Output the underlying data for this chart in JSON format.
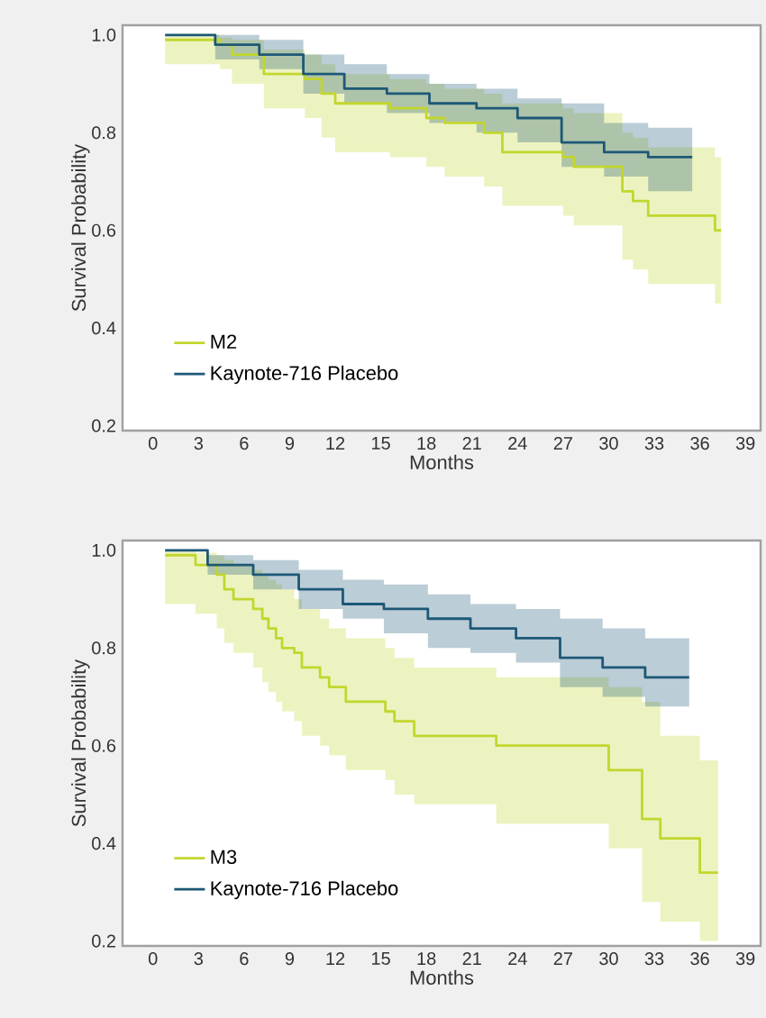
{
  "chart_data": [
    {
      "type": "step",
      "xlabel": "Months",
      "ylabel": "Survival Probability",
      "xlim": [
        -2,
        40
      ],
      "ylim": [
        0.19,
        1.02
      ],
      "xticks": [
        0,
        3,
        6,
        9,
        12,
        15,
        18,
        21,
        24,
        27,
        30,
        33,
        36,
        39
      ],
      "yticks": [
        0.2,
        0.4,
        0.6,
        0.8,
        {
          "value": 1,
          "label": "1.0"
        }
      ],
      "legend": "bottom left",
      "grid": false,
      "series": [
        {
          "name": "M2",
          "color": "#c2d62e",
          "x": [
            0.8,
            4.4,
            5.2,
            7.3,
            10.0,
            11.1,
            12.0,
            15.6,
            18.0,
            19.2,
            21.8,
            23.0,
            27.0,
            27.7,
            30.9,
            31.6,
            32.6,
            37.0,
            37.4
          ],
          "values": [
            0.99,
            0.98,
            0.96,
            0.92,
            0.91,
            0.88,
            0.86,
            0.85,
            0.83,
            0.82,
            0.8,
            0.76,
            0.75,
            0.73,
            0.68,
            0.66,
            0.63,
            0.6,
            0.6
          ],
          "upper": [
            1.0,
            0.995,
            0.99,
            0.97,
            0.96,
            0.94,
            0.92,
            0.91,
            0.9,
            0.89,
            0.88,
            0.86,
            0.85,
            0.84,
            0.8,
            0.79,
            0.77,
            0.75,
            0.75
          ],
          "lower": [
            0.94,
            0.93,
            0.9,
            0.85,
            0.83,
            0.79,
            0.76,
            0.75,
            0.73,
            0.71,
            0.69,
            0.65,
            0.63,
            0.61,
            0.54,
            0.52,
            0.49,
            0.45,
            0.45
          ]
        },
        {
          "name": "Kaynote-716 Placebo",
          "color": "#1d5877",
          "x": [
            0.8,
            4.1,
            7.0,
            9.9,
            12.6,
            15.4,
            18.2,
            21.3,
            24.0,
            26.9,
            29.7,
            32.6,
            35.5
          ],
          "values": [
            1.0,
            0.98,
            0.96,
            0.92,
            0.89,
            0.88,
            0.86,
            0.85,
            0.83,
            0.78,
            0.76,
            0.75,
            0.75
          ],
          "upper": [
            1.0,
            1.0,
            0.99,
            0.96,
            0.94,
            0.92,
            0.9,
            0.89,
            0.87,
            0.86,
            0.82,
            0.81,
            0.81
          ],
          "lower": [
            1.0,
            0.95,
            0.93,
            0.88,
            0.86,
            0.84,
            0.82,
            0.8,
            0.78,
            0.73,
            0.71,
            0.68,
            0.68
          ]
        }
      ]
    },
    {
      "type": "step",
      "xlabel": "Months",
      "ylabel": "Survival Probability",
      "xlim": [
        -2,
        40
      ],
      "ylim": [
        0.19,
        1.02
      ],
      "xticks": [
        0,
        3,
        6,
        9,
        12,
        15,
        18,
        21,
        24,
        27,
        30,
        33,
        36,
        39
      ],
      "yticks": [
        0.2,
        0.4,
        0.6,
        0.8,
        {
          "value": 1,
          "label": "1.0"
        }
      ],
      "legend": "bottom left",
      "grid": false,
      "series": [
        {
          "name": "M3",
          "color": "#c2d62e",
          "x": [
            0.8,
            2.8,
            4.2,
            4.7,
            5.3,
            6.6,
            7.2,
            7.6,
            8.1,
            8.5,
            9.3,
            9.8,
            11.0,
            11.6,
            12.7,
            15.3,
            15.9,
            17.2,
            22.6,
            30.0,
            32.2,
            33.4,
            36.0,
            37.2
          ],
          "values": [
            0.99,
            0.97,
            0.95,
            0.92,
            0.9,
            0.88,
            0.86,
            0.84,
            0.82,
            0.8,
            0.79,
            0.76,
            0.74,
            0.72,
            0.69,
            0.67,
            0.65,
            0.62,
            0.6,
            0.55,
            0.45,
            0.41,
            0.34,
            0.34
          ],
          "upper": [
            1.0,
            0.995,
            0.99,
            0.98,
            0.97,
            0.96,
            0.95,
            0.94,
            0.93,
            0.92,
            0.9,
            0.88,
            0.86,
            0.84,
            0.82,
            0.8,
            0.78,
            0.76,
            0.74,
            0.72,
            0.69,
            0.62,
            0.57,
            0.57
          ],
          "lower": [
            0.89,
            0.87,
            0.84,
            0.81,
            0.79,
            0.76,
            0.73,
            0.71,
            0.69,
            0.67,
            0.65,
            0.62,
            0.6,
            0.58,
            0.55,
            0.53,
            0.5,
            0.48,
            0.44,
            0.39,
            0.28,
            0.24,
            0.2,
            0.2
          ]
        },
        {
          "name": "Kaynote-716 Placebo",
          "color": "#1d5877",
          "x": [
            0.8,
            3.6,
            6.6,
            9.6,
            12.5,
            15.2,
            18.1,
            20.9,
            23.9,
            26.8,
            29.6,
            32.4,
            35.3
          ],
          "values": [
            1.0,
            0.97,
            0.95,
            0.92,
            0.89,
            0.88,
            0.86,
            0.84,
            0.82,
            0.78,
            0.76,
            0.74,
            0.74
          ],
          "upper": [
            1.0,
            0.99,
            0.98,
            0.96,
            0.94,
            0.93,
            0.91,
            0.89,
            0.88,
            0.86,
            0.84,
            0.82,
            0.82
          ],
          "lower": [
            1.0,
            0.95,
            0.92,
            0.88,
            0.86,
            0.83,
            0.8,
            0.79,
            0.77,
            0.72,
            0.7,
            0.68,
            0.68
          ]
        }
      ]
    }
  ]
}
